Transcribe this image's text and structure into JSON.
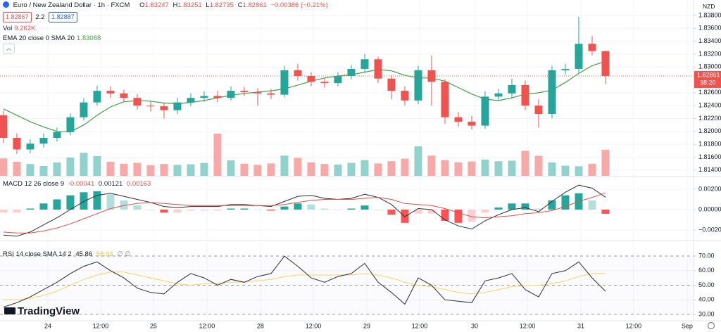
{
  "chart_data": [
    {
      "type": "candlestick",
      "title": "Euro / New Zealand Dollar · 1h · FXCM",
      "ohlc_labels": [
        "O",
        "H",
        "L",
        "C"
      ],
      "change": "−0.00386 (−0.21%)",
      "quote": {
        "bid": "1.82867",
        "spread": "2.2",
        "ask": "1.82887"
      },
      "currency": "NZD",
      "countdown": "38:20",
      "x": [
        0,
        1,
        2,
        3,
        4,
        5,
        6,
        7,
        8,
        9,
        10,
        11,
        12,
        13,
        14,
        15,
        16,
        17,
        18,
        19,
        20,
        21,
        22,
        23,
        24,
        25,
        26,
        27,
        28,
        29,
        30,
        31,
        32,
        33,
        34,
        35,
        36,
        37,
        38,
        39,
        40,
        41,
        42,
        43,
        44,
        45
      ],
      "open": [
        1.8225,
        1.819,
        1.8172,
        1.8181,
        1.819,
        1.8199,
        1.8222,
        1.8245,
        1.8263,
        1.8259,
        1.8252,
        1.824,
        1.8239,
        1.8233,
        1.8245,
        1.8252,
        1.8255,
        1.8252,
        1.8263,
        1.8261,
        1.8259,
        1.8257,
        1.8295,
        1.8286,
        1.8277,
        1.8275,
        1.8286,
        1.8297,
        1.8312,
        1.8282,
        1.8263,
        1.8248,
        1.8295,
        1.8277,
        1.8222,
        1.8215,
        1.8209,
        1.8254,
        1.8259,
        1.8272,
        1.824,
        1.8227,
        1.8295,
        1.8297,
        1.8336,
        1.83247
      ],
      "high": [
        1.8232,
        1.8197,
        1.8188,
        1.8197,
        1.8206,
        1.8228,
        1.8252,
        1.8271,
        1.827,
        1.8265,
        1.8258,
        1.8247,
        1.8245,
        1.8252,
        1.8259,
        1.8262,
        1.8263,
        1.827,
        1.8269,
        1.8267,
        1.8266,
        1.8302,
        1.8305,
        1.8292,
        1.8283,
        1.8292,
        1.8303,
        1.832,
        1.8316,
        1.8287,
        1.827,
        1.8302,
        1.8318,
        1.8281,
        1.823,
        1.8224,
        1.8262,
        1.8266,
        1.8282,
        1.8279,
        1.825,
        1.8302,
        1.8305,
        1.8378,
        1.8348,
        1.83251
      ],
      "low": [
        1.8182,
        1.8165,
        1.8166,
        1.8175,
        1.8184,
        1.8194,
        1.8217,
        1.824,
        1.8252,
        1.8245,
        1.8234,
        1.8231,
        1.822,
        1.8227,
        1.8239,
        1.8246,
        1.8245,
        1.8248,
        1.8255,
        1.824,
        1.825,
        1.8253,
        1.8279,
        1.827,
        1.8268,
        1.827,
        1.8281,
        1.8291,
        1.8275,
        1.825,
        1.824,
        1.8242,
        1.824,
        1.8212,
        1.8207,
        1.8203,
        1.8204,
        1.8247,
        1.8251,
        1.8233,
        1.8206,
        1.822,
        1.8288,
        1.829,
        1.8318,
        1.82735
      ],
      "close": [
        1.819,
        1.8172,
        1.8181,
        1.819,
        1.8199,
        1.8222,
        1.8245,
        1.8263,
        1.8259,
        1.8252,
        1.824,
        1.8239,
        1.8233,
        1.8245,
        1.8252,
        1.8255,
        1.8252,
        1.8263,
        1.8261,
        1.8259,
        1.8257,
        1.8295,
        1.8286,
        1.8277,
        1.8275,
        1.8286,
        1.8297,
        1.8312,
        1.8282,
        1.8263,
        1.8248,
        1.8295,
        1.8277,
        1.8222,
        1.8215,
        1.8209,
        1.8254,
        1.8259,
        1.8272,
        1.824,
        1.8227,
        1.8295,
        1.8297,
        1.8336,
        1.83247,
        1.82861
      ],
      "up_color": "#26a69a",
      "down_color": "#ef5350",
      "series": [
        {
          "name": "EMA 20 close 0 SMA 20",
          "color": "#43a047",
          "values": [
            1.8235,
            1.8225,
            1.8215,
            1.8207,
            1.82,
            1.8199,
            1.821,
            1.8225,
            1.8238,
            1.8246,
            1.8248,
            1.8247,
            1.8244,
            1.8243,
            1.8245,
            1.8248,
            1.8252,
            1.8256,
            1.8259,
            1.8261,
            1.8263,
            1.8266,
            1.8272,
            1.8278,
            1.8283,
            1.8286,
            1.8288,
            1.8292,
            1.8296,
            1.8294,
            1.8287,
            1.8283,
            1.8283,
            1.8278,
            1.8268,
            1.8258,
            1.825,
            1.8248,
            1.8252,
            1.8258,
            1.826,
            1.8264,
            1.8276,
            1.829,
            1.8302,
            1.83088
          ]
        }
      ],
      "volume": {
        "name": "Vol",
        "up_color": "#92d2cc",
        "down_color": "#f7a9a7",
        "values": [
          6200,
          5000,
          4200,
          3500,
          4800,
          6500,
          8200,
          7000,
          5000,
          4300,
          4600,
          3800,
          4200,
          3900,
          4100,
          4600,
          15000,
          5500,
          4300,
          3900,
          4400,
          7200,
          6400,
          4800,
          4200,
          4000,
          4600,
          5600,
          4400,
          5200,
          6100,
          10500,
          7200,
          5600,
          4800,
          5100,
          5800,
          5200,
          5400,
          8900,
          7100,
          4800,
          3600,
          3400,
          4300,
          9262
        ],
        "value_labels": [
          null,
          null,
          null,
          null,
          null,
          null,
          null,
          null,
          null,
          null,
          null,
          null,
          null,
          null,
          null,
          null,
          null,
          null,
          null,
          null,
          null,
          null,
          null,
          null,
          null,
          null,
          null,
          null,
          null,
          null,
          null,
          null,
          null,
          null,
          null,
          null,
          null,
          null,
          null,
          null,
          null,
          null,
          null,
          null,
          null,
          "9.262K"
        ],
        "ylim": [
          0,
          20000
        ]
      },
      "ylim": [
        1.8131,
        1.8404
      ],
      "yticks": [
        {
          "value": 1.838,
          "label": "1.83800"
        },
        {
          "value": 1.836,
          "label": "1.83600"
        },
        {
          "value": 1.834,
          "label": "1.83400"
        },
        {
          "value": 1.832,
          "label": "1.83200"
        },
        {
          "value": 1.83,
          "label": "1.83000"
        },
        {
          "value": 1.826,
          "label": "1.82600"
        },
        {
          "value": 1.824,
          "label": "1.82400"
        },
        {
          "value": 1.822,
          "label": "1.82200"
        },
        {
          "value": 1.82,
          "label": "1.82000"
        },
        {
          "value": 1.818,
          "label": "1.81800"
        },
        {
          "value": 1.816,
          "label": "1.81600"
        },
        {
          "value": 1.814,
          "label": "1.81400"
        }
      ],
      "xlim": [
        -0.26,
        51.58
      ],
      "xticks": [
        {
          "value": 3.32,
          "label": "24"
        },
        {
          "value": 7.26,
          "label": "12:00"
        },
        {
          "value": 11.21,
          "label": "25"
        },
        {
          "value": 15.21,
          "label": "12:00"
        },
        {
          "value": 19.21,
          "label": "28"
        },
        {
          "value": 23.16,
          "label": "12:00"
        },
        {
          "value": 27.16,
          "label": "29"
        },
        {
          "value": 31.1,
          "label": "12:00"
        },
        {
          "value": 35.21,
          "label": "30"
        },
        {
          "value": 39.16,
          "label": "12:00"
        },
        {
          "value": 43.16,
          "label": "31"
        },
        {
          "value": 47.1,
          "label": "12:00"
        },
        {
          "value": 51.1,
          "label": "Sep"
        }
      ],
      "grid": true
    },
    {
      "type": "macd",
      "title": "MACD 12 26 close 9",
      "histogram": {
        "colors": [
          "#26a69a",
          "#b2dfdb",
          "#ff5252",
          "#ffcdd2"
        ],
        "values": [
          -0.0003,
          -0.0003,
          0.0001,
          0.0006,
          0.001,
          0.0014,
          0.0017,
          0.0018,
          0.0015,
          0.0009,
          0.0004,
          0.0,
          -0.0003,
          -0.0003,
          -0.0001,
          -0.0001,
          -0.0001,
          0.0001,
          0.0001,
          0.0,
          -0.0001,
          0.0003,
          0.0006,
          0.0005,
          0.0001,
          0.0,
          0.0001,
          0.0004,
          0.0,
          -0.0005,
          -0.0013,
          -0.0004,
          -0.0004,
          -0.0011,
          -0.0013,
          -0.0012,
          -0.0003,
          0.0002,
          0.0006,
          0.0006,
          0.0001,
          0.0009,
          0.0014,
          0.0016,
          0.0009,
          -0.00041
        ]
      },
      "macd": {
        "color": "#2a2e39",
        "values": [
          -0.0025,
          -0.0026,
          -0.0022,
          -0.0015,
          -0.0008,
          0.0,
          0.0008,
          0.0014,
          0.0016,
          0.0013,
          0.001,
          0.0007,
          0.0003,
          0.0002,
          0.0003,
          0.0003,
          0.0003,
          0.0005,
          0.0005,
          0.0004,
          0.0003,
          0.0008,
          0.0013,
          0.0014,
          0.0011,
          0.001,
          0.0011,
          0.0015,
          0.0012,
          0.0005,
          -0.0007,
          0.0001,
          0.0,
          -0.001,
          -0.0016,
          -0.0019,
          -0.0011,
          -0.0005,
          0.0,
          0.0002,
          -0.0002,
          0.0008,
          0.0017,
          0.0024,
          0.0021,
          0.00121
        ]
      },
      "signal": {
        "color": "#d9534f",
        "values": [
          -0.0022,
          -0.0023,
          -0.0023,
          -0.0021,
          -0.0018,
          -0.0014,
          -0.0009,
          -0.0004,
          0.0001,
          0.0004,
          0.0006,
          0.0007,
          0.0006,
          0.0005,
          0.0004,
          0.0004,
          0.0004,
          0.0004,
          0.0004,
          0.0004,
          0.0004,
          0.0005,
          0.0007,
          0.0009,
          0.001,
          0.001,
          0.001,
          0.0011,
          0.0012,
          0.001,
          0.0006,
          0.0005,
          0.0004,
          0.0001,
          -0.0003,
          -0.0007,
          -0.0008,
          -0.0007,
          -0.0006,
          -0.0004,
          -0.0003,
          -0.0001,
          0.0003,
          0.0008,
          0.0012,
          0.00163
        ]
      },
      "ylim": [
        -0.0029,
        0.00317
      ],
      "yticks": [
        {
          "value": 0.002,
          "label": "0.00200"
        },
        {
          "value": 0,
          "label": "0.00000"
        },
        {
          "value": -0.002,
          "label": "−0.00200"
        }
      ]
    },
    {
      "type": "rsi",
      "title": "RSI 14 close SMA 14 2",
      "extra": "∅ ∅",
      "series": [
        {
          "color": "#2a2e39",
          "values": [
            35,
            38,
            42,
            47,
            52,
            58,
            63,
            66,
            60,
            55,
            48,
            45,
            44,
            52,
            58,
            55,
            50,
            54,
            52,
            56,
            58,
            70,
            63,
            55,
            52,
            56,
            58,
            65,
            52,
            45,
            37,
            55,
            50,
            40,
            39,
            38,
            53,
            55,
            58,
            47,
            42,
            58,
            60,
            66,
            55,
            45.86
          ]
        },
        {
          "color": "#f2d46b",
          "values": [
            40,
            40,
            41,
            43,
            46,
            50,
            54,
            57,
            59,
            59,
            57,
            55,
            53,
            51,
            50,
            51,
            51,
            52,
            52,
            53,
            54,
            56,
            57,
            57,
            57,
            57,
            57,
            58,
            57,
            55,
            52,
            50,
            49,
            47,
            45,
            44,
            45,
            47,
            49,
            50,
            50,
            51,
            53,
            56,
            58,
            58.03
          ]
        }
      ],
      "ylim": [
        26.1,
        79.2
      ],
      "yticks": [
        {
          "value": 70,
          "label": "70.00"
        },
        {
          "value": 60,
          "label": "60.00"
        },
        {
          "value": 50,
          "label": "50.00"
        },
        {
          "value": 40,
          "label": "40.00"
        },
        {
          "value": 30,
          "label": "30.00"
        }
      ],
      "dashed_levels": [
        70,
        50,
        30
      ]
    }
  ],
  "watermark": "TradingView"
}
